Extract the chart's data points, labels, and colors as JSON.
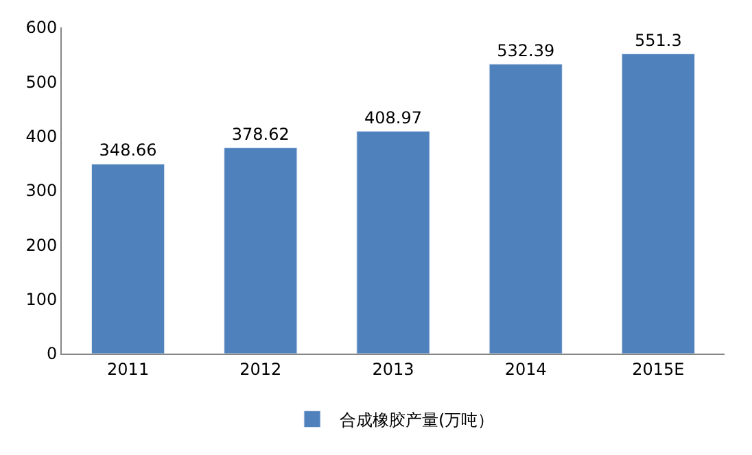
{
  "chart_data": {
    "type": "bar",
    "categories": [
      "2011",
      "2012",
      "2013",
      "2014",
      "2015E"
    ],
    "series": [
      {
        "name": "合成橡胶产量(万吨）",
        "color": "#4f81bd",
        "values": [
          348.66,
          378.62,
          408.97,
          532.39,
          551.3
        ]
      }
    ],
    "ylim": [
      0,
      600
    ],
    "yticks": [
      0,
      100,
      200,
      300,
      400,
      500,
      600
    ],
    "data_labels": true,
    "grid": false,
    "legend": "bottom"
  }
}
